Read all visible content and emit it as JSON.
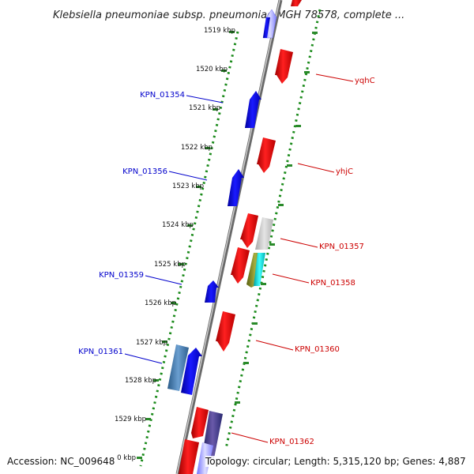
{
  "title": "Klebsiella pneumoniae subsp. pneumoniae MGH 78578, complete ...",
  "ticks": [
    "1519 kbp",
    "1520 kbp",
    "1521 kbp",
    "1522 kbp",
    "1523 kbp",
    "1524 kbp",
    "1525 kbp",
    "1526 kbp",
    "1527 kbp",
    "1528 kbp",
    "1529 kbp",
    "0 kbp"
  ],
  "left_labels": [
    "KPN_01354",
    "KPN_01356",
    "KPN_01359",
    "KPN_01361"
  ],
  "right_labels": [
    "yqhC",
    "yhjC",
    "KPN_01357",
    "KPN_01358",
    "KPN_01360",
    "KPN_01362"
  ],
  "footer": {
    "accession": "Accession: NC_009648",
    "topology": "Topology: circular; Length: 5,315,120 bp; Genes: 4,887"
  },
  "colors": {
    "forward_genes": "#0000ee",
    "reverse_genes": "#ee0000",
    "left_label": "#0000cc",
    "right_label": "#cc0000",
    "dotted_track": "#1a8a1a",
    "backbone": "#888888"
  }
}
